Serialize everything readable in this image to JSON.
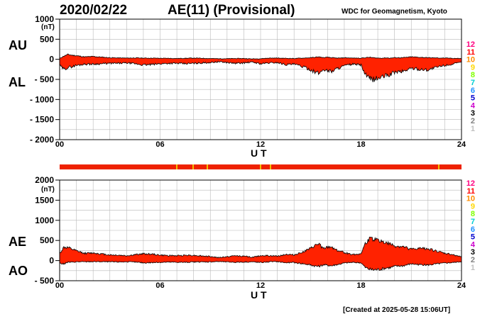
{
  "header": {
    "date": "2020/02/22",
    "title": "AE(11) (Provisional)",
    "source": "WDC for Geomagnetism, Kyoto"
  },
  "footer": {
    "created": "[Created at 2025-05-28 15:06UT]"
  },
  "colors": {
    "fill": "#ff2200",
    "status_bar": "#ee2200",
    "gap_mark": "#f0c000"
  },
  "legend": {
    "items": [
      {
        "label": "12",
        "color": "#ff0080"
      },
      {
        "label": "11",
        "color": "#ff0000"
      },
      {
        "label": "10",
        "color": "#ff8c00"
      },
      {
        "label": "9",
        "color": "#ffd700"
      },
      {
        "label": "8",
        "color": "#7fff00"
      },
      {
        "label": "7",
        "color": "#00ced1"
      },
      {
        "label": "6",
        "color": "#1e90ff"
      },
      {
        "label": "5",
        "color": "#0000cd"
      },
      {
        "label": "4",
        "color": "#cc00cc"
      },
      {
        "label": "3",
        "color": "#000000"
      },
      {
        "label": "2",
        "color": "#808080"
      },
      {
        "label": "1",
        "color": "#c0c0c0"
      }
    ]
  },
  "chart_data": [
    {
      "type": "area",
      "panel": "AU/AL",
      "label_upper": "AU",
      "label_lower": "AL",
      "unit": "(nT)",
      "xlabel": "U T",
      "ylim": [
        -2000,
        1000
      ],
      "ytick_labels": [
        "1000",
        "500",
        "0",
        "- 500",
        "- 1000",
        "- 1500",
        "- 2000"
      ],
      "xtick_labels": [
        "00",
        "06",
        "12",
        "18",
        "24"
      ],
      "x": [
        0,
        0.25,
        0.5,
        0.75,
        1,
        1.5,
        2,
        2.5,
        3,
        3.5,
        4,
        4.5,
        5,
        5.5,
        6,
        6.5,
        7,
        7.5,
        8,
        8.5,
        9,
        9.5,
        10,
        10.5,
        11,
        11.5,
        12,
        12.5,
        13,
        13.5,
        14,
        14.5,
        15,
        15.25,
        15.5,
        15.75,
        16,
        16.25,
        16.5,
        16.75,
        17,
        17.5,
        18,
        18.25,
        18.5,
        18.75,
        19,
        19.25,
        19.5,
        19.75,
        20,
        20.5,
        21,
        21.5,
        22,
        22.5,
        23,
        23.5,
        24
      ],
      "series": [
        {
          "name": "AU",
          "values": [
            20,
            80,
            120,
            100,
            90,
            60,
            70,
            55,
            40,
            35,
            30,
            35,
            30,
            30,
            25,
            25,
            20,
            25,
            30,
            25,
            20,
            15,
            15,
            20,
            20,
            10,
            15,
            30,
            30,
            25,
            20,
            30,
            40,
            50,
            60,
            40,
            50,
            40,
            30,
            30,
            40,
            30,
            30,
            40,
            50,
            40,
            30,
            30,
            35,
            30,
            40,
            40,
            60,
            50,
            40,
            35,
            30,
            25,
            20
          ]
        },
        {
          "name": "AL",
          "values": [
            -150,
            -250,
            -200,
            -180,
            -150,
            -120,
            -120,
            -110,
            -100,
            -100,
            -90,
            -110,
            -140,
            -130,
            -110,
            -100,
            -100,
            -110,
            -100,
            -90,
            -80,
            -60,
            -80,
            -100,
            -90,
            -70,
            -110,
            -90,
            -80,
            -130,
            -120,
            -180,
            -260,
            -320,
            -350,
            -250,
            -280,
            -300,
            -240,
            -200,
            -160,
            -120,
            -140,
            -380,
            -480,
            -500,
            -470,
            -450,
            -400,
            -380,
            -320,
            -300,
            -220,
            -250,
            -260,
            -200,
            -150,
            -120,
            -70
          ]
        }
      ]
    },
    {
      "type": "area",
      "panel": "AE/AO",
      "label_upper": "AE",
      "label_lower": "AO",
      "unit": "(nT)",
      "xlabel": "U T",
      "ylim": [
        -500,
        2000
      ],
      "ytick_labels": [
        "2000",
        "1500",
        "1000",
        "500",
        "0",
        "- 500"
      ],
      "xtick_labels": [
        "00",
        "06",
        "12",
        "18",
        "24"
      ],
      "x": [
        0,
        0.25,
        0.5,
        0.75,
        1,
        1.5,
        2,
        2.5,
        3,
        3.5,
        4,
        4.5,
        5,
        5.5,
        6,
        6.5,
        7,
        7.5,
        8,
        8.5,
        9,
        9.5,
        10,
        10.5,
        11,
        11.5,
        12,
        12.5,
        13,
        13.5,
        14,
        14.5,
        15,
        15.25,
        15.5,
        15.75,
        16,
        16.25,
        16.5,
        16.75,
        17,
        17.5,
        18,
        18.25,
        18.5,
        18.75,
        19,
        19.25,
        19.5,
        19.75,
        20,
        20.5,
        21,
        21.5,
        22,
        22.5,
        23,
        23.5,
        24
      ],
      "series": [
        {
          "name": "AE",
          "values": [
            170,
            330,
            320,
            280,
            240,
            180,
            190,
            165,
            140,
            135,
            120,
            145,
            170,
            160,
            135,
            125,
            120,
            135,
            130,
            115,
            100,
            75,
            95,
            120,
            110,
            80,
            125,
            120,
            110,
            155,
            140,
            210,
            300,
            370,
            410,
            290,
            330,
            340,
            270,
            230,
            200,
            150,
            170,
            420,
            530,
            540,
            500,
            480,
            435,
            410,
            360,
            340,
            280,
            300,
            300,
            235,
            180,
            145,
            90
          ]
        },
        {
          "name": "AO",
          "values": [
            -65,
            -85,
            -40,
            -40,
            -30,
            -30,
            -25,
            -28,
            -30,
            -33,
            -30,
            -38,
            -55,
            -50,
            -43,
            -38,
            -40,
            -43,
            -35,
            -33,
            -30,
            -23,
            -33,
            -40,
            -35,
            -30,
            -48,
            -30,
            -25,
            -53,
            -50,
            -75,
            -110,
            -135,
            -145,
            -105,
            -115,
            -130,
            -105,
            -85,
            -60,
            -45,
            -55,
            -170,
            -215,
            -230,
            -220,
            -210,
            -183,
            -175,
            -140,
            -130,
            -80,
            -100,
            -110,
            -83,
            -60,
            -48,
            -25
          ]
        }
      ]
    }
  ]
}
